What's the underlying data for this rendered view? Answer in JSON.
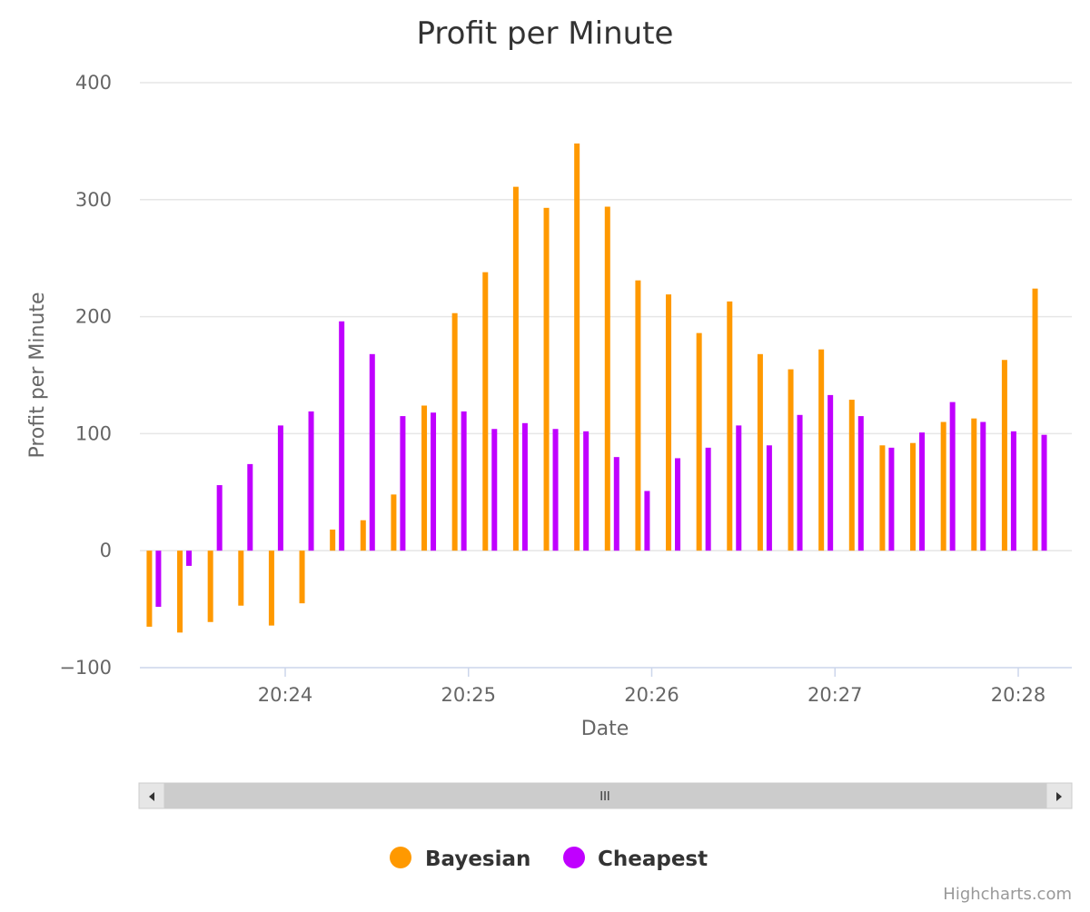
{
  "chart_data": {
    "type": "bar",
    "title": "Profit per Minute",
    "xlabel": "Date",
    "ylabel": "Profit per Minute",
    "ylim": [
      -100,
      400
    ],
    "yticks": [
      -100,
      0,
      100,
      200,
      300,
      400
    ],
    "xticks": [
      "20:24",
      "20:25",
      "20:26",
      "20:27",
      "20:28"
    ],
    "x_start_time": "20:23:17",
    "x_interval_seconds": 10,
    "series": [
      {
        "name": "Bayesian",
        "color": "#ff9900",
        "values": [
          -65,
          -70,
          -61,
          -47,
          -64,
          -45,
          18,
          26,
          48,
          124,
          203,
          238,
          311,
          293,
          348,
          294,
          231,
          219,
          186,
          213,
          168,
          155,
          172,
          129,
          90,
          92,
          110,
          113,
          163,
          224
        ]
      },
      {
        "name": "Cheapest",
        "color": "#c000ff",
        "values": [
          -48,
          -13,
          56,
          74,
          107,
          119,
          196,
          168,
          115,
          118,
          119,
          104,
          109,
          104,
          102,
          80,
          51,
          79,
          88,
          107,
          90,
          116,
          133,
          115,
          88,
          101,
          127,
          110,
          102,
          99
        ]
      }
    ],
    "legend_position": "bottom-center",
    "grid": true
  },
  "navigator": {
    "handle_glyph": "III",
    "left_arrow": "◀",
    "right_arrow": "▶"
  },
  "credits": "Highcharts.com"
}
